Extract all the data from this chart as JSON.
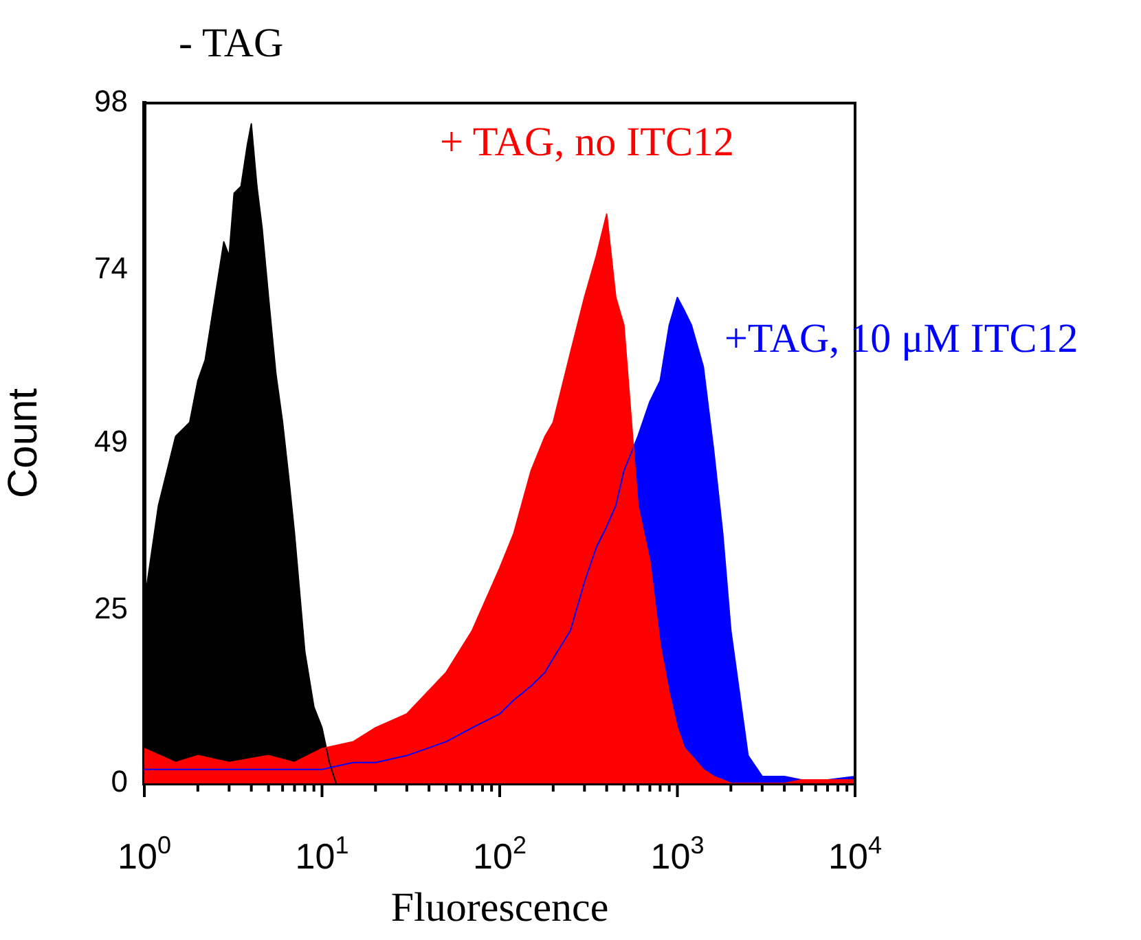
{
  "chart_data": {
    "type": "area",
    "xlabel": "Fluorescence",
    "ylabel": "Count",
    "log": "x",
    "grid": false,
    "legend": false,
    "marker": "none",
    "xlim": [
      1,
      10000
    ],
    "ylim": [
      0,
      98
    ],
    "yticks": [
      0,
      25,
      49,
      74,
      98
    ],
    "xticks": [
      {
        "value": 1,
        "label": "10$^{0}$"
      },
      {
        "value": 2,
        "label": null
      },
      {
        "value": 3,
        "label": null
      },
      {
        "value": 4,
        "label": null
      },
      {
        "value": 5,
        "label": null
      },
      {
        "value": 6,
        "label": null
      },
      {
        "value": 7,
        "label": null
      },
      {
        "value": 8,
        "label": null
      },
      {
        "value": 9,
        "label": null
      },
      {
        "value": 10,
        "label": "10$^{1}$"
      },
      {
        "value": 20,
        "label": null
      },
      {
        "value": 30,
        "label": null
      },
      {
        "value": 40,
        "label": null
      },
      {
        "value": 50,
        "label": null
      },
      {
        "value": 60,
        "label": null
      },
      {
        "value": 70,
        "label": null
      },
      {
        "value": 80,
        "label": null
      },
      {
        "value": 90,
        "label": null
      },
      {
        "value": 100,
        "label": "10$^{2}$"
      },
      {
        "value": 200,
        "label": null
      },
      {
        "value": 300,
        "label": null
      },
      {
        "value": 400,
        "label": null
      },
      {
        "value": 500,
        "label": null
      },
      {
        "value": 600,
        "label": null
      },
      {
        "value": 700,
        "label": null
      },
      {
        "value": 800,
        "label": null
      },
      {
        "value": 900,
        "label": null
      },
      {
        "value": 1000,
        "label": "10$^{3}$"
      },
      {
        "value": 2000,
        "label": null
      },
      {
        "value": 3000,
        "label": null
      },
      {
        "value": 4000,
        "label": null
      },
      {
        "value": 5000,
        "label": null
      },
      {
        "value": 6000,
        "label": null
      },
      {
        "value": 7000,
        "label": null
      },
      {
        "value": 8000,
        "label": null
      },
      {
        "value": 9000,
        "label": null
      },
      {
        "value": 10000,
        "label": "10$^{4}$"
      }
    ],
    "series": [
      {
        "name": "- TAG",
        "color": "#000000",
        "x": [
          1,
          1.2,
          1.5,
          1.8,
          2,
          2.2,
          2.5,
          2.8,
          3,
          3.2,
          3.5,
          3.8,
          4,
          4.3,
          4.6,
          5,
          5.5,
          6,
          6.5,
          7,
          8,
          9,
          10,
          11,
          12
        ],
        "values": [
          26,
          40,
          50,
          52,
          58,
          61,
          70,
          78,
          76,
          85,
          86,
          92,
          95,
          86,
          80,
          70,
          59,
          52,
          44,
          36,
          19,
          11,
          8,
          3,
          0
        ]
      },
      {
        "name": "+TAG, 10 μM ITC12",
        "color": "#0000ff",
        "x": [
          1,
          1.5,
          2,
          3,
          5,
          7,
          10,
          15,
          20,
          30,
          50,
          70,
          100,
          120,
          150,
          180,
          200,
          250,
          300,
          350,
          400,
          450,
          500,
          600,
          700,
          800,
          900,
          1000,
          1100,
          1200,
          1400,
          1600,
          1800,
          2000,
          2500,
          3000,
          4000,
          5000,
          7000,
          10000
        ],
        "values": [
          2,
          2,
          2,
          2,
          2,
          2,
          2,
          3,
          3,
          4,
          6,
          8,
          10,
          12,
          14,
          16,
          18,
          22,
          29,
          34,
          37,
          40,
          45,
          50,
          55,
          58,
          66,
          70,
          68,
          66,
          60,
          48,
          36,
          22,
          4,
          1,
          1,
          0.5,
          0.5,
          1
        ]
      },
      {
        "name": "+ TAG, no ITC12",
        "color": "#ff0000",
        "x": [
          1,
          1.5,
          2,
          3,
          5,
          7,
          10,
          15,
          20,
          30,
          50,
          70,
          100,
          120,
          150,
          180,
          200,
          250,
          300,
          350,
          400,
          450,
          500,
          600,
          700,
          800,
          900,
          1000,
          1100,
          1200,
          1400,
          1600,
          1800,
          2000,
          2500,
          3000,
          4000,
          5000,
          7000,
          10000
        ],
        "values": [
          5,
          3,
          4,
          3,
          4,
          3,
          5,
          6,
          8,
          10,
          16,
          22,
          31,
          36,
          45,
          50,
          52,
          62,
          70,
          76,
          82,
          70,
          66,
          40,
          32,
          20,
          13,
          8,
          5,
          4,
          2,
          1,
          0.5,
          0,
          0,
          0,
          0,
          0.5,
          0.5,
          0.5
        ]
      }
    ]
  }
}
